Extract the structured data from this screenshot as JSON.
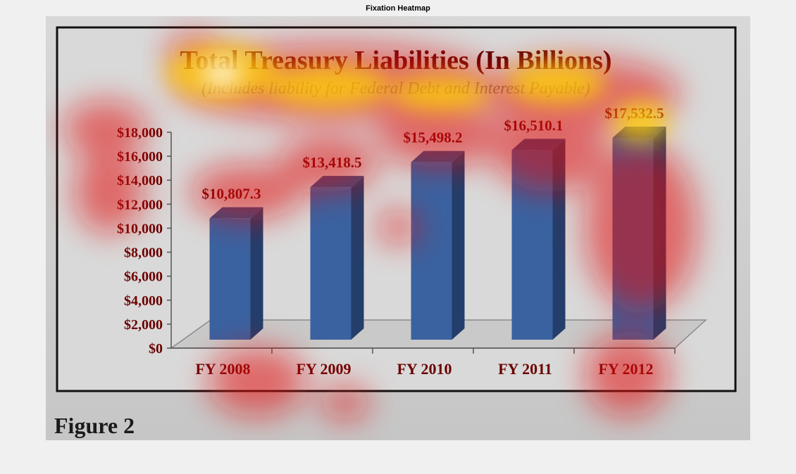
{
  "figure": {
    "title": "Fixation Heatmap"
  },
  "caption": "Figure 2",
  "colors": {
    "bar_front": "#3a62a0",
    "bar_side": "#233e6b",
    "bar_top": "#2f4f86",
    "frame": "#111111",
    "text": "#6b0000"
  },
  "chart_data": {
    "type": "bar",
    "title": "Total Treasury Liabilities (In Billions)",
    "subtitle": "(Includes liability for Federal Debt and Interest Payable)",
    "categories": [
      "FY 2008",
      "FY 2009",
      "FY 2010",
      "FY 2011",
      "FY 2012"
    ],
    "values": [
      10807.3,
      13418.5,
      15498.2,
      16510.1,
      17532.5
    ],
    "value_labels": [
      "$10,807.3",
      "$13,418.5",
      "$15,498.2",
      "$16,510.1",
      "$17,532.5"
    ],
    "yticks": [
      "$0",
      "$2,000",
      "$4,000",
      "$6,000",
      "$8,000",
      "$10,000",
      "$12,000",
      "$14,000",
      "$16,000",
      "$18,000"
    ],
    "ylim": [
      0,
      18000
    ],
    "xlabel": "",
    "ylabel": "",
    "grid": false,
    "legend": "none"
  }
}
